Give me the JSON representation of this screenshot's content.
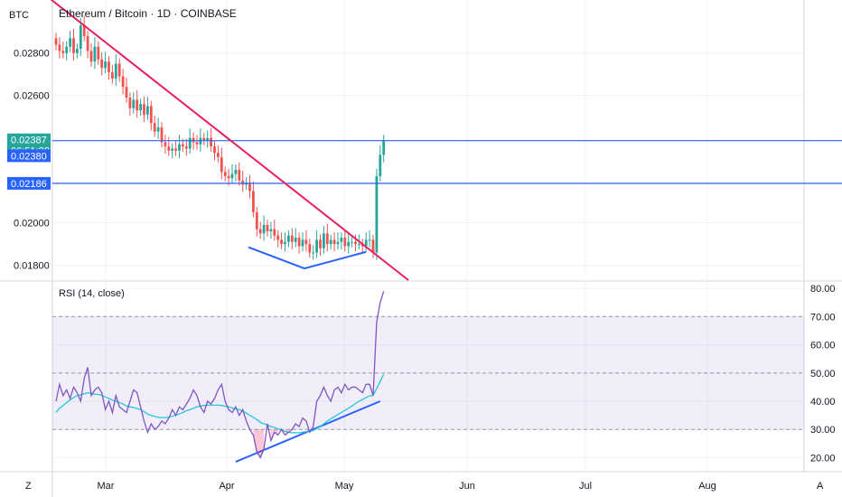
{
  "header": {
    "currency": "BTC",
    "title": "Ethereum / Bitcoin · 1D · COINBASE"
  },
  "colors": {
    "up": "#26a69a",
    "down": "#ef5350",
    "trendline": "#e91e63",
    "support": "#2962ff",
    "rsi": "#7e57c2",
    "rsi_ma": "#26c6da",
    "rsi_band": "#7e57c2"
  },
  "chart_data": [
    {
      "type": "candlestick",
      "name": "main",
      "ylim": [
        0.0173,
        0.0305
      ],
      "yticks": [
        "0.02800",
        "0.02600",
        "0.02000",
        "0.01800"
      ],
      "ytick_values": [
        0.028,
        0.026,
        0.02,
        0.018
      ],
      "xticks": [
        "Mar",
        "Apr",
        "May",
        "Jun",
        "Jul",
        "Aug"
      ],
      "price_labels": [
        {
          "text": "0.02387",
          "value": 0.02387,
          "color": "#26a69a",
          "countdown": "06:51:38"
        },
        {
          "text": "0.02380",
          "value": 0.0238,
          "color": "#2962ff"
        },
        {
          "text": "0.02186",
          "value": 0.02186,
          "color": "#2962ff"
        }
      ],
      "horizontal_lines": [
        0.02387,
        0.02186
      ],
      "closes": [
        0.0284,
        0.0281,
        0.028,
        0.0283,
        0.0287,
        0.028,
        0.0282,
        0.0293,
        0.0288,
        0.0281,
        0.0276,
        0.0283,
        0.0277,
        0.0273,
        0.0276,
        0.0271,
        0.0268,
        0.0275,
        0.0269,
        0.0264,
        0.0259,
        0.0254,
        0.0258,
        0.0253,
        0.0256,
        0.0251,
        0.0255,
        0.0247,
        0.0243,
        0.0245,
        0.0238,
        0.0236,
        0.0234,
        0.0235,
        0.0234,
        0.0237,
        0.0236,
        0.0235,
        0.024,
        0.0238,
        0.0237,
        0.024,
        0.0239,
        0.024,
        0.0236,
        0.0233,
        0.0231,
        0.0224,
        0.0222,
        0.0221,
        0.0223,
        0.0225,
        0.022,
        0.0218,
        0.0219,
        0.0215,
        0.0205,
        0.0197,
        0.0195,
        0.0199,
        0.0196,
        0.0197,
        0.0194,
        0.0192,
        0.019,
        0.0191,
        0.0194,
        0.0191,
        0.0193,
        0.0189,
        0.0192,
        0.019,
        0.0186,
        0.0186,
        0.0192,
        0.0188,
        0.0195,
        0.019,
        0.0192,
        0.019,
        0.0191,
        0.0193,
        0.0189,
        0.0191,
        0.0191,
        0.019,
        0.019,
        0.0189,
        0.0192,
        0.0192,
        0.0186,
        0.0222,
        0.0232,
        0.0239
      ]
    },
    {
      "type": "line",
      "name": "rsi",
      "title": "RSI (14, close)",
      "ylim": [
        15,
        82
      ],
      "yticks": [
        "80.00",
        "70.00",
        "60.00",
        "50.00",
        "40.00",
        "30.00",
        "20.00"
      ],
      "ytick_values": [
        80,
        70,
        60,
        50,
        40,
        30,
        20
      ],
      "band": [
        30,
        70
      ],
      "midline": 50,
      "series": [
        {
          "role": "rsi",
          "values": [
            40,
            46,
            42,
            44,
            41,
            45,
            43,
            40,
            48,
            52,
            42,
            44,
            45,
            43,
            37,
            40,
            36,
            42,
            38,
            37,
            36,
            40,
            44,
            43,
            38,
            33,
            29,
            32,
            30,
            31,
            33,
            32,
            34,
            37,
            35,
            38,
            37,
            39,
            41,
            44,
            42,
            38,
            36,
            40,
            39,
            41,
            44,
            46,
            40,
            37,
            36,
            38,
            35,
            37,
            33,
            30,
            28,
            22,
            20,
            23,
            32,
            26,
            29,
            28,
            30,
            28,
            29,
            30,
            32,
            31,
            34,
            33,
            29,
            31,
            40,
            42,
            45,
            42,
            40,
            44,
            45,
            43,
            46,
            44,
            45,
            45,
            44,
            43,
            46,
            46,
            42,
            68,
            75,
            79
          ]
        },
        {
          "role": "ma",
          "values": [
            36,
            37.5,
            38.5,
            39.5,
            40.5,
            41.3,
            42,
            42.2,
            42.6,
            43,
            42.8,
            42.5,
            42.4,
            42.1,
            41.5,
            41,
            40.4,
            40,
            39.5,
            39,
            38.3,
            38,
            37.8,
            37.4,
            37,
            36.3,
            35.4,
            35,
            34.6,
            34.3,
            34.2,
            34.2,
            34.3,
            34.7,
            35,
            35.5,
            36,
            36.6,
            37,
            37.5,
            38,
            38.3,
            38.5,
            38.6,
            38.6,
            38.6,
            38.6,
            38.5,
            38.2,
            38,
            37.6,
            37.3,
            37,
            36.5,
            35.8,
            35,
            34.3,
            33.5,
            32.5,
            32,
            31.6,
            31,
            30.7,
            30.2,
            29.8,
            29.3,
            29,
            28.8,
            28.8,
            28.8,
            29,
            29.2,
            29.3,
            29.6,
            30.3,
            31,
            32,
            33,
            33.8,
            34.5,
            35.3,
            36,
            36.8,
            37.5,
            38.3,
            39.2,
            40,
            40.6,
            41.3,
            41.9,
            42,
            44.5,
            47,
            49.5
          ]
        }
      ]
    }
  ],
  "drawings": {
    "downtrend": {
      "x1_index": -2,
      "y1": 0.0306,
      "x2_index": 100,
      "y2": 0.0173
    },
    "price_support": {
      "x1_index": 54.6,
      "y1": 0.01885,
      "x2_index": 88,
      "y2": 0.01863,
      "pivot_index": 70.5,
      "pivot_y": 0.01785
    },
    "rsi_support": {
      "x1_index": 51,
      "y1": 18.5,
      "x2_index": 92,
      "y2": 40
    }
  },
  "footer": {
    "left_button": "Z",
    "right_button": "A"
  }
}
